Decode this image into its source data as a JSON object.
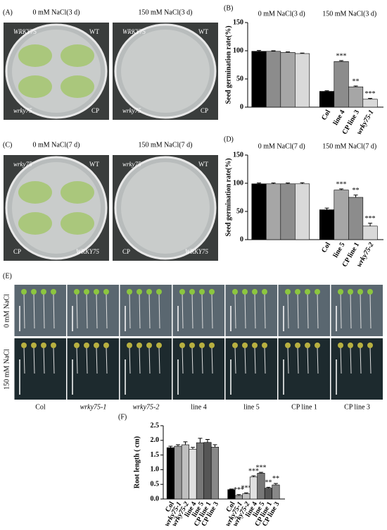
{
  "panels": {
    "A": {
      "label": "(A)",
      "titles": [
        "0 mM NaCl(3 d)",
        "150 mM NaCl(3 d)"
      ],
      "plate_labels": [
        [
          "WRKY75",
          "WT",
          "wrky75",
          "CP"
        ],
        [
          "WRKY75",
          "WT",
          "wrky75",
          "CP"
        ]
      ]
    },
    "C": {
      "label": "(C)",
      "titles": [
        "0 mM NaCl(7 d)",
        "150 mM NaCl(7 d)"
      ],
      "plate_labels": [
        [
          "wrky75",
          "WT",
          "CP",
          "WRKY75"
        ],
        [
          "wrky75",
          "WT",
          "CP",
          "WRKY75"
        ]
      ]
    },
    "E": {
      "label": "(E)",
      "row_labels": [
        "0 mM NaCl",
        "150 mM NaCl"
      ],
      "columns": [
        "Col",
        "wrky75-1",
        "wrky75-2",
        "line 4",
        "line 5",
        "CP line 1",
        "CP line 3"
      ]
    }
  },
  "chart_data": [
    {
      "type": "bar",
      "label": "(B)",
      "group_titles": [
        "0 mM NaCl(3 d)",
        "150 mM NaCl(3 d)"
      ],
      "ylabel": "Seed germination rate(%)",
      "ylim": [
        0,
        150
      ],
      "yticks": [
        0,
        50,
        100,
        150
      ],
      "labelled_groups": [
        1
      ],
      "series": [
        {
          "name": "Col",
          "color": "#000000",
          "values": [
            99,
            28
          ],
          "errors": [
            1.5,
            1
          ],
          "annotations": [
            null,
            null
          ]
        },
        {
          "name": "line 4",
          "color": "#8c8c8c",
          "values": [
            99,
            81
          ],
          "errors": [
            1,
            1.5
          ],
          "annotations": [
            null,
            "***"
          ]
        },
        {
          "name": "CP line 3",
          "color": "#a6a6a6",
          "values": [
            97,
            36
          ],
          "errors": [
            1,
            1.5
          ],
          "annotations": [
            null,
            "**"
          ]
        },
        {
          "name": "wrky75-1",
          "color": "#d9d9d9",
          "values": [
            95,
            14
          ],
          "errors": [
            1,
            1.5
          ],
          "annotations": [
            null,
            "***"
          ]
        }
      ]
    },
    {
      "type": "bar",
      "label": "(D)",
      "group_titles": [
        "0 mM NaCl(7 d)",
        "150 mM NaCl(7 d)"
      ],
      "ylabel": "Seed germination rate(%)",
      "ylim": [
        0,
        150
      ],
      "yticks": [
        0,
        50,
        100,
        150
      ],
      "labelled_groups": [
        1
      ],
      "series": [
        {
          "name": "Col",
          "color": "#000000",
          "values": [
            99,
            53
          ],
          "errors": [
            1.5,
            3
          ],
          "annotations": [
            null,
            null
          ]
        },
        {
          "name": "line 5",
          "color": "#a6a6a6",
          "values": [
            99,
            88
          ],
          "errors": [
            1.5,
            2
          ],
          "annotations": [
            null,
            "***"
          ]
        },
        {
          "name": "CP line 1",
          "color": "#8c8c8c",
          "values": [
            99,
            75
          ],
          "errors": [
            1.5,
            4
          ],
          "annotations": [
            null,
            "**"
          ]
        },
        {
          "name": "wrky75-2",
          "color": "#d9d9d9",
          "values": [
            99,
            24
          ],
          "errors": [
            2,
            5
          ],
          "annotations": [
            null,
            "***"
          ]
        }
      ]
    },
    {
      "type": "bar",
      "label": "(F)",
      "ylabel": "Root length ( cm)",
      "ylim": [
        0,
        2.5
      ],
      "yticks": [
        {
          "value": 0,
          "label": "0.0"
        },
        {
          "value": 0.5,
          "label": "0.5"
        },
        {
          "value": 1,
          "label": "1.0"
        },
        {
          "value": 1.5,
          "label": "1.5"
        },
        {
          "value": 2,
          "label": "2.0"
        },
        {
          "value": 2.5,
          "label": "2.5"
        }
      ],
      "labelled_groups": [
        0,
        1
      ],
      "series": [
        {
          "name": "Col",
          "color": "#000000",
          "values": [
            1.75,
            0.32
          ],
          "errors": [
            0.05,
            0.02
          ],
          "annotations": [
            null,
            null
          ]
        },
        {
          "name": "wrky75-1",
          "color": "#9a9a9a",
          "values": [
            1.8,
            0.12
          ],
          "errors": [
            0.05,
            0.03
          ],
          "annotations": [
            null,
            "***"
          ]
        },
        {
          "name": "wrky75-2",
          "color": "#bfbfbf",
          "values": [
            1.85,
            0.18
          ],
          "errors": [
            0.1,
            0.03
          ],
          "annotations": [
            null,
            "***"
          ]
        },
        {
          "name": "line 4",
          "color": "#e0e0e0",
          "values": [
            1.7,
            0.75
          ],
          "errors": [
            0.06,
            0.04
          ],
          "annotations": [
            null,
            "***"
          ]
        },
        {
          "name": "line 5",
          "color": "#777777",
          "values": [
            1.92,
            0.88
          ],
          "errors": [
            0.15,
            0.03
          ],
          "annotations": [
            null,
            "***"
          ]
        },
        {
          "name": "CP line 1",
          "color": "#555555",
          "values": [
            1.93,
            0.37
          ],
          "errors": [
            0.1,
            0.03
          ],
          "annotations": [
            null,
            "**"
          ]
        },
        {
          "name": "CP line 3",
          "color": "#888888",
          "values": [
            1.77,
            0.48
          ],
          "errors": [
            0.08,
            0.05
          ],
          "annotations": [
            null,
            "**"
          ]
        }
      ]
    }
  ]
}
